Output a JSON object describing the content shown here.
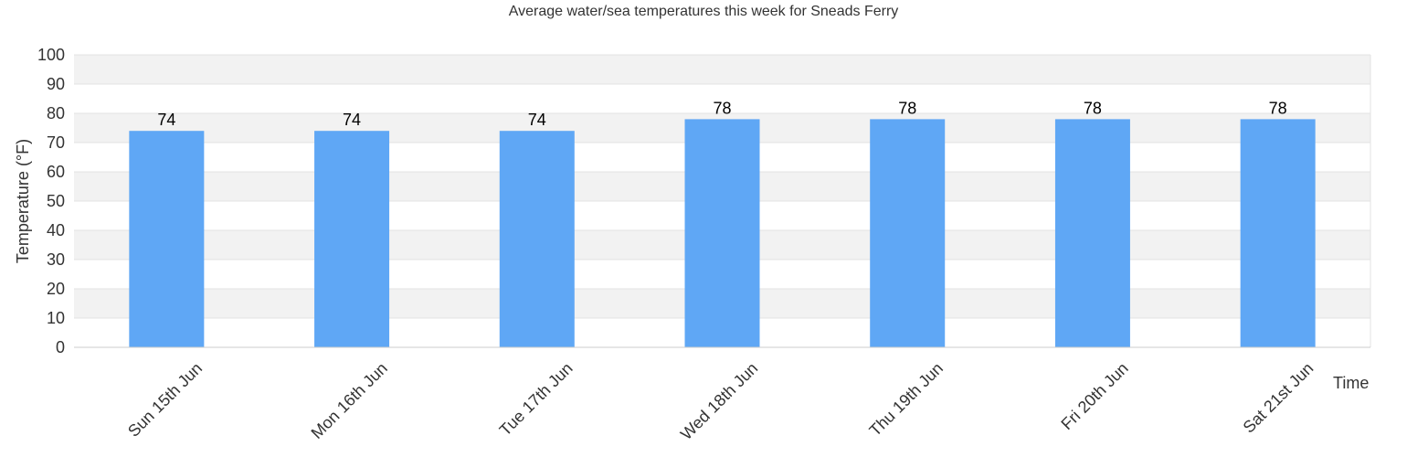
{
  "chart_data": {
    "type": "bar",
    "title": "Average water/sea temperatures this week for Sneads Ferry",
    "xlabel": "Time",
    "ylabel": "Temperature (°F)",
    "categories": [
      "Sun 15th Jun",
      "Mon 16th Jun",
      "Tue 17th Jun",
      "Wed 18th Jun",
      "Thu 19th Jun",
      "Fri 20th Jun",
      "Sat 21st Jun"
    ],
    "values": [
      74,
      74,
      74,
      78,
      78,
      78,
      78
    ],
    "ylim": [
      0,
      100
    ],
    "yticks": [
      0,
      10,
      20,
      30,
      40,
      50,
      60,
      70,
      80,
      90,
      100
    ],
    "grid": true,
    "legend": "none",
    "colors": {
      "bar": "#5fa7f5",
      "band": "#f2f2f2",
      "grid": "#e3e3e3",
      "text": "#333333"
    }
  }
}
